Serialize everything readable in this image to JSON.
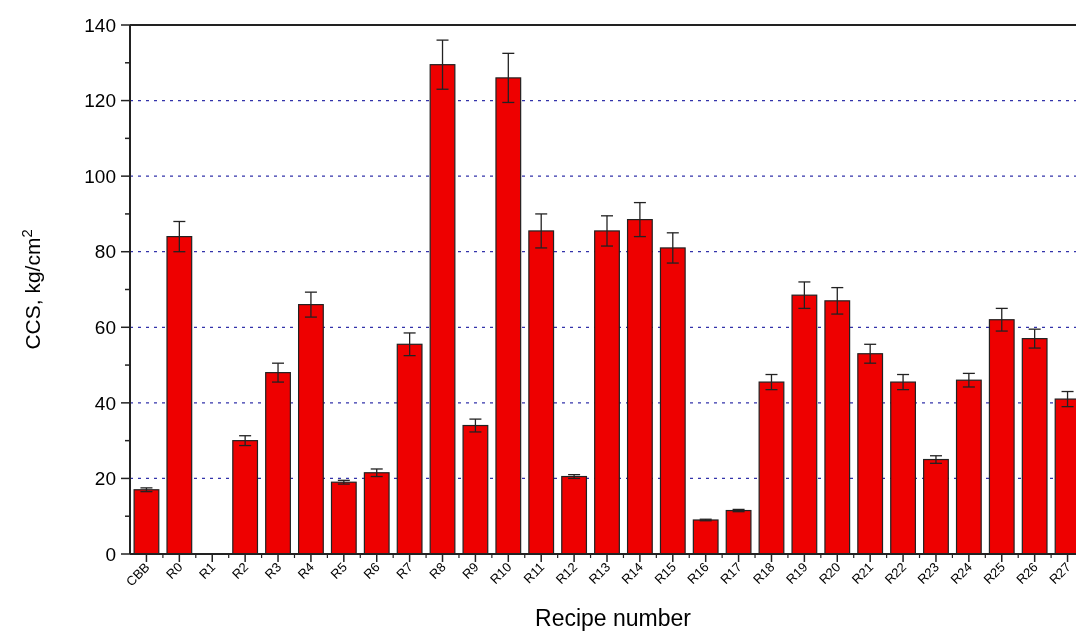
{
  "chart_data": {
    "type": "bar",
    "xlabel": "Recipe number",
    "ylabel": "CCS, kg/cm$^{2}$",
    "categories": [
      "CBB",
      "R0",
      "R1",
      "R2",
      "R3",
      "R4",
      "R5",
      "R6",
      "R7",
      "R8",
      "R9",
      "R10",
      "R11",
      "R12",
      "R13",
      "R14",
      "R15",
      "R16",
      "R17",
      "R18",
      "R19",
      "R20",
      "R21",
      "R22",
      "R23",
      "R24",
      "R25",
      "R26",
      "R27"
    ],
    "values": [
      17,
      84,
      null,
      30,
      48,
      66,
      19,
      21.5,
      55.5,
      129.5,
      34,
      126,
      85.5,
      20.5,
      85.5,
      88.5,
      81,
      9,
      11.5,
      45.5,
      68.5,
      67,
      53,
      45.5,
      25,
      46,
      62,
      57,
      41
    ],
    "errors": [
      0.5,
      4,
      null,
      1.3,
      2.5,
      3.3,
      0.5,
      1,
      3,
      6.5,
      1.7,
      6.5,
      4.5,
      0.5,
      4,
      4.5,
      4,
      0.2,
      0.3,
      2,
      3.5,
      3.5,
      2.5,
      2,
      1,
      1.8,
      3,
      2.5,
      2
    ],
    "color": "#ee0000",
    "ylim": [
      0,
      140
    ],
    "yticks": [
      0,
      {
        "value": 10,
        "label": null
      },
      20,
      {
        "value": 30,
        "label": null
      },
      40,
      {
        "value": 50,
        "label": null
      },
      60,
      {
        "value": 70,
        "label": null
      },
      80,
      {
        "value": 90,
        "label": null
      },
      100,
      {
        "value": 110,
        "label": null
      },
      120,
      {
        "value": 130,
        "label": null
      },
      140
    ],
    "grid": "y"
  }
}
